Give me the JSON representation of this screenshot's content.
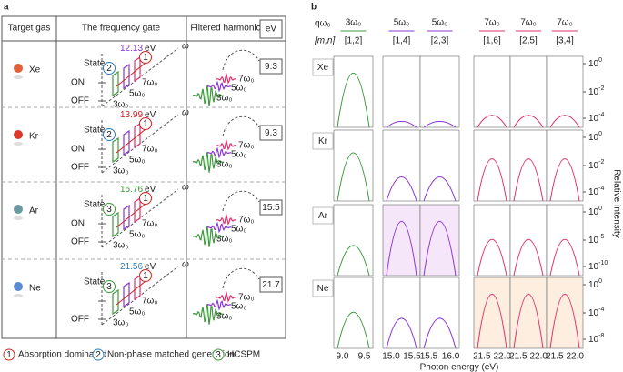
{
  "panel_a": {
    "label": "a",
    "headers": [
      "Target gas",
      "The frequency gate",
      "Filtered harmonic",
      "eV"
    ],
    "rows": [
      {
        "gas": "Xe",
        "energy": "12.13",
        "unit": "eV",
        "state": "State",
        "on": "ON",
        "off": "OFF",
        "omega": "ω",
        "circles": [
          "2",
          "1"
        ],
        "gate_harmonics": [
          "3ω₀",
          "5ω₀",
          "7ω₀"
        ],
        "pulse_harmonics": [
          "7ω₀",
          "5ω₀",
          "3ω₀"
        ],
        "filtered": "9.3"
      },
      {
        "gas": "Kr",
        "energy": "13.99",
        "unit": "eV",
        "state": "State",
        "on": "ON",
        "off": "OFF",
        "omega": "ω",
        "circles": [
          "2",
          "1"
        ],
        "gate_harmonics": [
          "3ω₀",
          "5ω₀",
          "7ω₀"
        ],
        "pulse_harmonics": [
          "7ω₀",
          "5ω₀",
          "3ω₀"
        ],
        "filtered": "9.3"
      },
      {
        "gas": "Ar",
        "energy": "15.76",
        "unit": "eV",
        "state": "State",
        "on": "ON",
        "off": "OFF",
        "omega": "ω",
        "circles": [
          "3",
          "1"
        ],
        "gate_harmonics": [
          "3ω₀",
          "5ω₀",
          "7ω₀"
        ],
        "pulse_harmonics": [
          "7ω₀",
          "5ω₀",
          "3ω₀"
        ],
        "filtered": "15.5"
      },
      {
        "gas": "Ne",
        "energy": "21.56",
        "unit": "eV",
        "state": "State",
        "off": "OFF",
        "omega": "ω",
        "circles": [
          "3",
          "1"
        ],
        "gate_harmonics": [
          "3ω₀",
          "5ω₀",
          "7ω₀"
        ],
        "pulse_harmonics": [
          "7ω₀",
          "5ω₀",
          "3ω₀"
        ],
        "filtered": "21.7"
      }
    ],
    "legend": [
      {
        "number": "1",
        "text": "Absorption dominated"
      },
      {
        "number": "2",
        "text": "Non-phase matched generation"
      },
      {
        "number": "3",
        "text": "HCSPM"
      }
    ]
  },
  "panel_b": {
    "label": "b",
    "q_label": "qω₀",
    "mn_label": "[m,n]",
    "columns": [
      {
        "harmonic": "3ω₀",
        "mn": "[1,2]",
        "xticks": [
          "9.0",
          "9.5"
        ]
      },
      {
        "harmonic": "5ω₀",
        "mn": "[1,4]",
        "xticks": [
          "15.0",
          "15.5"
        ]
      },
      {
        "harmonic": "5ω₀",
        "mn": "[2,3]",
        "xticks": [
          "15.5",
          "16.0"
        ]
      },
      {
        "harmonic": "7ω₀",
        "mn": "[1,6]",
        "xticks": [
          "21.5",
          "22.0"
        ]
      },
      {
        "harmonic": "7ω₀",
        "mn": "[2,5]",
        "xticks": [
          "21.5",
          "22.0"
        ]
      },
      {
        "harmonic": "7ω₀",
        "mn": "[3,4]",
        "xticks": [
          "21.5",
          "22.0"
        ]
      }
    ],
    "rows": [
      {
        "gas": "Xe",
        "yticks": [
          {
            "base": "10",
            "exp": "0"
          },
          {
            "base": "10",
            "exp": "-2"
          },
          {
            "base": "10",
            "exp": "-4"
          }
        ]
      },
      {
        "gas": "Kr",
        "yticks": [
          {
            "base": "10",
            "exp": "0"
          },
          {
            "base": "10",
            "exp": "-2"
          },
          {
            "base": "10",
            "exp": "-4"
          }
        ]
      },
      {
        "gas": "Ar",
        "yticks": [
          {
            "base": "10",
            "exp": "0"
          },
          {
            "base": "10",
            "exp": "-5"
          },
          {
            "base": "10",
            "exp": "-10"
          }
        ]
      },
      {
        "gas": "Ne",
        "yticks": [
          {
            "base": "10",
            "exp": "0"
          },
          {
            "base": "10",
            "exp": "-4"
          },
          {
            "base": "10",
            "exp": "-8"
          }
        ]
      }
    ],
    "xlabel": "Photon energy (eV)",
    "ylabel": "Relative intensity"
  }
}
